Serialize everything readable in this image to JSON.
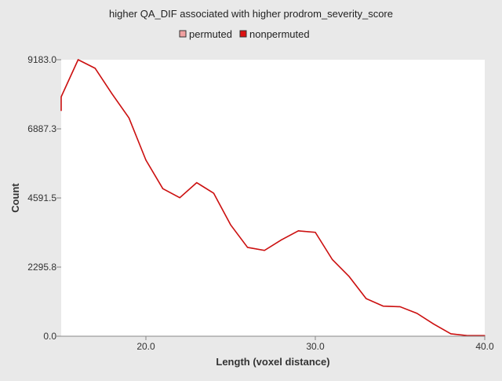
{
  "chart_data": {
    "type": "line",
    "title": "higher QA_DIF associated with higher prodrom_severity_score",
    "xlabel": "Length (voxel distance)",
    "ylabel": "Count",
    "xlim": [
      15,
      40
    ],
    "ylim": [
      0,
      9183.0
    ],
    "xticks": [
      "20.0",
      "30.0",
      "40.0"
    ],
    "xtick_values": [
      20,
      30,
      40
    ],
    "yticks": [
      "0.0",
      "2295.8",
      "4591.5",
      "6887.3",
      "9183.0"
    ],
    "ytick_values": [
      0,
      2295.8,
      4591.5,
      6887.3,
      9183.0
    ],
    "grid": false,
    "legend_position": "top-center",
    "legend": [
      {
        "name": "permuted",
        "color": "#f0a0a0"
      },
      {
        "name": "nonpermuted",
        "color": "#dd1111"
      }
    ],
    "series": [
      {
        "name": "permuted",
        "color": "#e8a0a0",
        "x": [
          15,
          16,
          17,
          18,
          19,
          20,
          21,
          22,
          23,
          24,
          25,
          26,
          27,
          28,
          29,
          30,
          31,
          32,
          33,
          34,
          35,
          36,
          37,
          38,
          39,
          40
        ],
        "values": [
          7950,
          9183,
          8900,
          8050,
          7250,
          5850,
          4900,
          4600,
          5100,
          4750,
          3700,
          2950,
          2850,
          3200,
          3500,
          3450,
          2550,
          1980,
          1250,
          1000,
          980,
          760,
          400,
          80,
          20,
          20
        ]
      },
      {
        "name": "nonpermuted",
        "color": "#cc1111",
        "x": [
          15,
          16,
          17,
          18,
          19,
          20,
          21,
          22,
          23,
          24,
          25,
          26,
          27,
          28,
          29,
          30,
          31,
          32,
          33,
          34,
          35,
          36,
          37,
          38,
          39,
          40
        ],
        "values": [
          7950,
          9183,
          8900,
          8050,
          7250,
          5850,
          4900,
          4600,
          5100,
          4750,
          3700,
          2950,
          2850,
          3200,
          3500,
          3450,
          2550,
          1980,
          1250,
          1000,
          980,
          760,
          400,
          80,
          20,
          20
        ]
      }
    ]
  }
}
